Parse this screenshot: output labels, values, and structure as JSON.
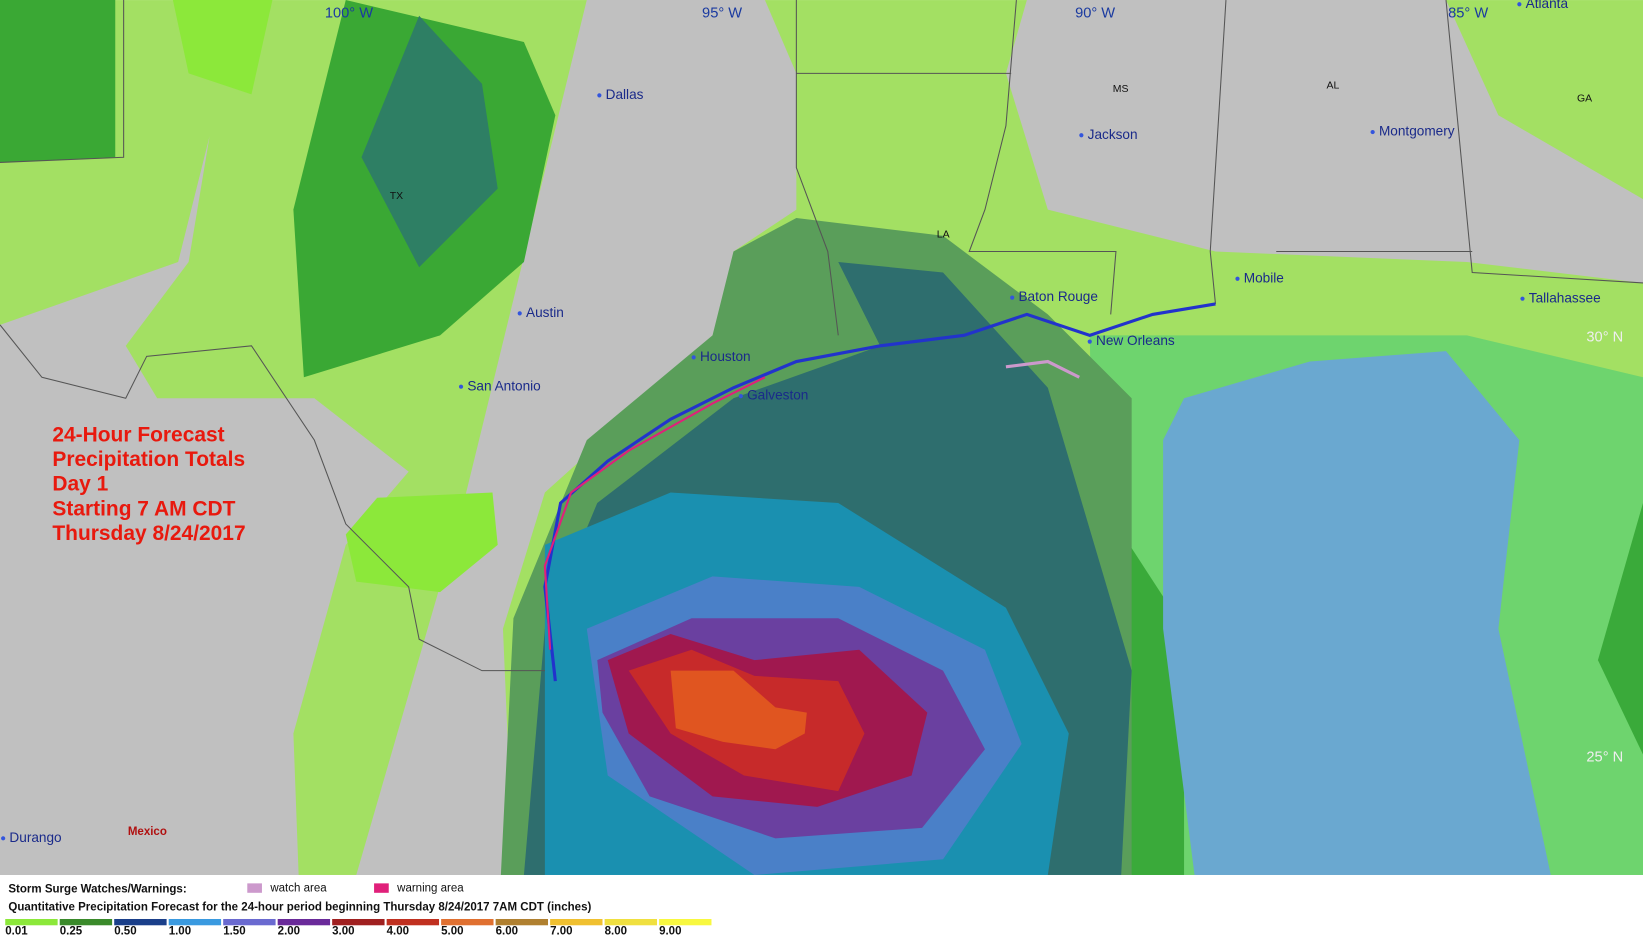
{
  "map": {
    "title_lines": [
      "24-Hour Forecast",
      "Precipitation Totals",
      "Day 1",
      "Starting 7 AM CDT",
      "Thursday 8/24/2017"
    ],
    "longitude_labels": [
      "100° W",
      "95° W",
      "90° W",
      "85° W"
    ],
    "latitude_labels": [
      "30° N",
      "25° N"
    ],
    "cities": [
      "Dallas",
      "Austin",
      "San Antonio",
      "Houston",
      "Galveston",
      "Jackson",
      "Montgomery",
      "Atlanta",
      "Baton Rouge",
      "Mobile",
      "New Orleans",
      "Tallahassee",
      "Durango"
    ],
    "states": [
      "TX",
      "LA",
      "MS",
      "AL",
      "GA"
    ],
    "country": "Mexico"
  },
  "legend": {
    "surge_title": "Storm Surge Watches/Warnings:",
    "surge_items": [
      {
        "label": "watch area",
        "color": "#cc99cc"
      },
      {
        "label": "warning area",
        "color": "#e0207a"
      }
    ],
    "qpf_title": "Quantitative Precipitation Forecast for the 24-hour period beginning Thursday 8/24/2017 7AM CDT (inches)",
    "qpf_scale": [
      {
        "label": "0.01",
        "color": "#8ce83a"
      },
      {
        "label": "0.25",
        "color": "#3a8a2a"
      },
      {
        "label": "0.50",
        "color": "#1a3f8a"
      },
      {
        "label": "1.00",
        "color": "#3a9ae0"
      },
      {
        "label": "1.50",
        "color": "#6a6ad0"
      },
      {
        "label": "2.00",
        "color": "#6a2a9a"
      },
      {
        "label": "3.00",
        "color": "#a02020"
      },
      {
        "label": "4.00",
        "color": "#c03020"
      },
      {
        "label": "5.00",
        "color": "#e07030"
      },
      {
        "label": "6.00",
        "color": "#b08030"
      },
      {
        "label": "7.00",
        "color": "#f0c030"
      },
      {
        "label": "8.00",
        "color": "#f0e040"
      },
      {
        "label": "9.00",
        "color": "#f8f840"
      }
    ]
  }
}
